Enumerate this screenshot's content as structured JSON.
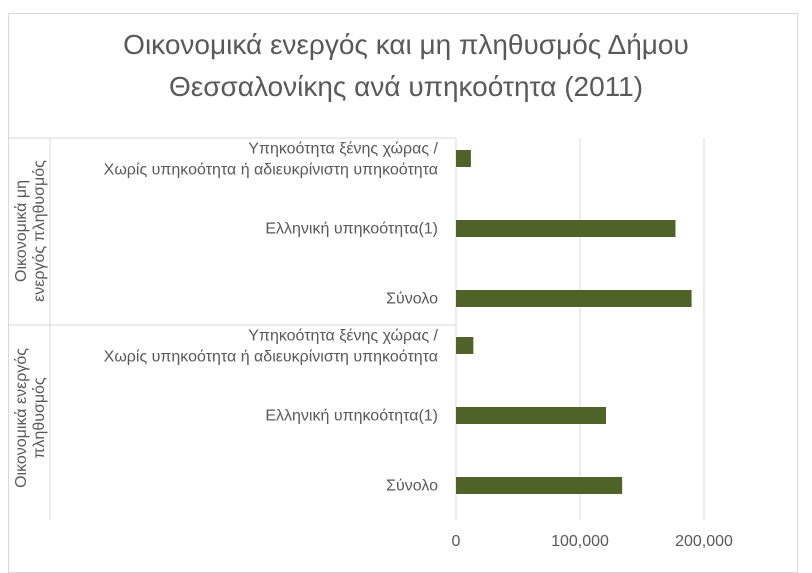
{
  "chart_data": {
    "type": "bar",
    "orientation": "horizontal",
    "title": "Οικονομικά ενεργός και μη πληθυσμός Δήμου\nΘεσσαλονίκης ανά υπηκοότητα (2011)",
    "groups": [
      {
        "name": "Οικονομικά μη ενεργός πληθυσμός",
        "categories": [
          "Υπηκοότητα ξένης χώρας / Χωρίς υπηκοότητα ή αδιευκρίνιστη υπηκοότητα",
          "Ελληνική υπηκοότητα(1)",
          "Σύνολο"
        ],
        "values": [
          12000,
          177000,
          190000
        ]
      },
      {
        "name": "Οικονομικά ενεργός πληθυσμός",
        "categories": [
          "Υπηκοότητα ξένης χώρας / Χωρίς υπηκοότητα ή αδιευκρίνιστη υπηκοότητα",
          "Ελληνική υπηκοότητα(1)",
          "Σύνολο"
        ],
        "values": [
          14000,
          121000,
          134000
        ]
      }
    ],
    "xticks": [
      "0",
      "100,000",
      "200,000"
    ],
    "xlim": [
      0,
      250000
    ],
    "grid": true,
    "colors": {
      "bar": "#4f6228",
      "grid": "#d9d9d9",
      "text": "#595959"
    }
  }
}
